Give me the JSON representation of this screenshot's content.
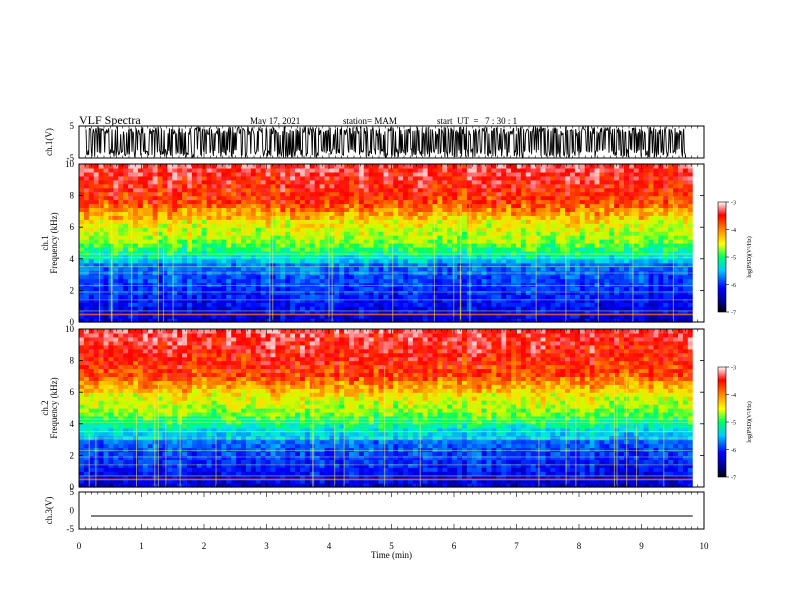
{
  "header": {
    "title": "VLF Spectra",
    "date": "May 17, 2021",
    "station": "station= MAM",
    "start": "start  UT  =   7 : 30 : 1"
  },
  "chart_data": [
    {
      "type": "line",
      "name": "ch1-waveform",
      "ylabel": "ch.1(V)",
      "ylim": [
        -5,
        5
      ],
      "yticks": [
        "5",
        "-5"
      ],
      "description_level": "dense noisy waveform filling most of range"
    },
    {
      "type": "heatmap",
      "name": "ch1-spectrogram",
      "ylabel": "ch.1\nFrequency (kHz)",
      "ylim": [
        0,
        10
      ],
      "yticks": [
        "0",
        "2",
        "4",
        "6",
        "8",
        "10"
      ],
      "colorbar": {
        "label": "log(PSD)(V²/Hz)",
        "ticks": [
          "-3",
          "-4",
          "-5",
          "-6",
          "-7"
        ],
        "range": [
          -7,
          -3
        ]
      },
      "band_edges_khz": {
        "red_above": 7.5,
        "yellow": 6.5,
        "green": 5.0,
        "cyan": 4.2,
        "blue_below": 3.8
      }
    },
    {
      "type": "heatmap",
      "name": "ch2-spectrogram",
      "ylabel": "ch.2\nFrequency (kHz)",
      "ylim": [
        0,
        10
      ],
      "yticks": [
        "0",
        "2",
        "4",
        "6",
        "8",
        "10"
      ],
      "colorbar": {
        "label": "log(PSD)(V²/Hz)",
        "ticks": [
          "-3",
          "-4",
          "-5",
          "-6",
          "-7"
        ],
        "range": [
          -7,
          -3
        ]
      },
      "band_edges_khz": {
        "red_above": 7.0,
        "yellow": 6.0,
        "green": 4.6,
        "cyan": 3.8,
        "blue_below": 3.0
      }
    },
    {
      "type": "line",
      "name": "ch3-waveform",
      "ylabel": "ch.3(V)",
      "ylim": [
        -5,
        5
      ],
      "yticks": [
        "5",
        "0",
        "-5"
      ],
      "value": -1.5
    }
  ],
  "xaxis": {
    "label": "Time (min)",
    "ticks": [
      "0",
      "1",
      "2",
      "3",
      "4",
      "5",
      "6",
      "7",
      "8",
      "9",
      "10"
    ],
    "xlim": [
      0,
      10
    ],
    "data_end": 9.82
  }
}
